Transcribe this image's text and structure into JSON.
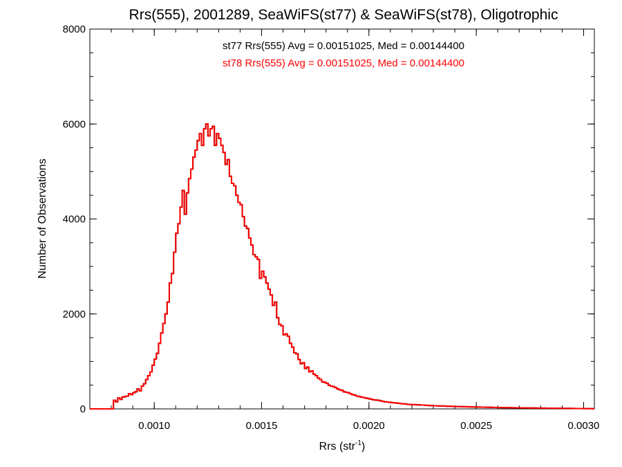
{
  "chart_data": {
    "type": "histogram",
    "title": "Rrs(555), 2001289, SeaWiFS(st77) & SeaWiFS(st78), Oligotrophic",
    "xlabel_base": "Rrs (str",
    "xlabel_sup": "-1",
    "xlabel_close": ")",
    "ylabel": "Number of Observations",
    "xlim": [
      0.0007,
      0.00305
    ],
    "ylim": [
      0,
      8000
    ],
    "xticks": [
      {
        "value": 0.001,
        "label": "0.0010"
      },
      {
        "value": 0.0015,
        "label": "0.0015"
      },
      {
        "value": 0.002,
        "label": "0.0020"
      },
      {
        "value": 0.0025,
        "label": "0.0025"
      },
      {
        "value": 0.003,
        "label": "0.0030"
      }
    ],
    "yticks": [
      {
        "value": 0,
        "label": "0"
      },
      {
        "value": 2000,
        "label": "2000"
      },
      {
        "value": 4000,
        "label": "4000"
      },
      {
        "value": 6000,
        "label": "6000"
      },
      {
        "value": 8000,
        "label": "8000"
      }
    ],
    "annotations": [
      {
        "text": "st77 Rrs(555) Avg = 0.00151025, Med = 0.00144400",
        "color": "#000000"
      },
      {
        "text": "st78 Rrs(555) Avg = 0.00151025, Med = 0.00144400",
        "color": "#ff0000"
      }
    ],
    "bin_width": 1e-05,
    "series": [
      {
        "name": "st77",
        "color": "#000000",
        "bins": [
          [
            0.0007,
            0
          ],
          [
            0.0008,
            0
          ],
          [
            0.00081,
            180
          ],
          [
            0.00082,
            150
          ],
          [
            0.00083,
            230
          ],
          [
            0.00084,
            200
          ],
          [
            0.00085,
            250
          ],
          [
            0.00086,
            260
          ],
          [
            0.00087,
            270
          ],
          [
            0.00088,
            320
          ],
          [
            0.00089,
            300
          ],
          [
            0.0009,
            340
          ],
          [
            0.00091,
            360
          ],
          [
            0.00092,
            420
          ],
          [
            0.00093,
            380
          ],
          [
            0.00094,
            480
          ],
          [
            0.00095,
            530
          ],
          [
            0.00096,
            620
          ],
          [
            0.00097,
            700
          ],
          [
            0.00098,
            780
          ],
          [
            0.00099,
            920
          ],
          [
            0.001,
            1050
          ],
          [
            0.00101,
            1170
          ],
          [
            0.00102,
            1380
          ],
          [
            0.00103,
            1600
          ],
          [
            0.00104,
            1800
          ],
          [
            0.00105,
            2000
          ],
          [
            0.00106,
            2250
          ],
          [
            0.00107,
            2650
          ],
          [
            0.00108,
            2850
          ],
          [
            0.00109,
            3300
          ],
          [
            0.0011,
            3700
          ],
          [
            0.00111,
            3900
          ],
          [
            0.00112,
            4250
          ],
          [
            0.00113,
            4600
          ],
          [
            0.00114,
            4100
          ],
          [
            0.00115,
            4550
          ],
          [
            0.00116,
            4850
          ],
          [
            0.00117,
            5050
          ],
          [
            0.00118,
            5300
          ],
          [
            0.00119,
            5450
          ],
          [
            0.0012,
            5650
          ],
          [
            0.00121,
            5800
          ],
          [
            0.00122,
            5550
          ],
          [
            0.00123,
            5900
          ],
          [
            0.00124,
            6000
          ],
          [
            0.00125,
            5750
          ],
          [
            0.00126,
            5900
          ],
          [
            0.00127,
            5950
          ],
          [
            0.00128,
            5550
          ],
          [
            0.00129,
            5800
          ],
          [
            0.0013,
            5700
          ],
          [
            0.00131,
            5550
          ],
          [
            0.00132,
            5400
          ],
          [
            0.00133,
            5150
          ],
          [
            0.00134,
            5250
          ],
          [
            0.00135,
            4900
          ],
          [
            0.00136,
            4750
          ],
          [
            0.00137,
            4700
          ],
          [
            0.00138,
            4500
          ],
          [
            0.00139,
            4350
          ],
          [
            0.0014,
            4300
          ],
          [
            0.00141,
            4050
          ],
          [
            0.00142,
            3850
          ],
          [
            0.00143,
            3800
          ],
          [
            0.00144,
            3600
          ],
          [
            0.00145,
            3450
          ],
          [
            0.00146,
            3250
          ],
          [
            0.00147,
            3200
          ],
          [
            0.00148,
            3150
          ],
          [
            0.00149,
            2750
          ],
          [
            0.0015,
            2900
          ],
          [
            0.00151,
            2780
          ],
          [
            0.00152,
            2650
          ],
          [
            0.00153,
            2520
          ],
          [
            0.00154,
            2400
          ],
          [
            0.00155,
            2180
          ],
          [
            0.00156,
            2250
          ],
          [
            0.00157,
            1920
          ],
          [
            0.00158,
            1780
          ],
          [
            0.00159,
            1750
          ],
          [
            0.0016,
            1560
          ],
          [
            0.00161,
            1580
          ],
          [
            0.00162,
            1530
          ],
          [
            0.00163,
            1380
          ],
          [
            0.00164,
            1300
          ],
          [
            0.00165,
            1180
          ],
          [
            0.00166,
            1160
          ],
          [
            0.00167,
            1040
          ],
          [
            0.00168,
            950
          ],
          [
            0.00169,
            970
          ],
          [
            0.0017,
            850
          ],
          [
            0.00171,
            880
          ],
          [
            0.00172,
            780
          ],
          [
            0.00173,
            800
          ],
          [
            0.00174,
            730
          ],
          [
            0.00175,
            700
          ],
          [
            0.00176,
            650
          ],
          [
            0.00177,
            620
          ],
          [
            0.00178,
            570
          ],
          [
            0.00179,
            560
          ],
          [
            0.0018,
            540
          ],
          [
            0.00181,
            500
          ],
          [
            0.00182,
            480
          ],
          [
            0.00183,
            470
          ],
          [
            0.00184,
            450
          ],
          [
            0.00185,
            420
          ],
          [
            0.00186,
            400
          ],
          [
            0.00187,
            390
          ],
          [
            0.00188,
            360
          ],
          [
            0.00189,
            350
          ],
          [
            0.0019,
            340
          ],
          [
            0.00191,
            320
          ],
          [
            0.00192,
            300
          ],
          [
            0.00193,
            290
          ],
          [
            0.00194,
            270
          ],
          [
            0.00195,
            260
          ],
          [
            0.00196,
            250
          ],
          [
            0.00197,
            240
          ],
          [
            0.00198,
            230
          ],
          [
            0.00199,
            220
          ],
          [
            0.002,
            210
          ],
          [
            0.00201,
            200
          ],
          [
            0.00202,
            190
          ],
          [
            0.00203,
            185
          ],
          [
            0.00204,
            180
          ],
          [
            0.00205,
            170
          ],
          [
            0.00206,
            160
          ],
          [
            0.00207,
            150
          ],
          [
            0.00208,
            145
          ],
          [
            0.00209,
            140
          ],
          [
            0.0021,
            135
          ],
          [
            0.00211,
            130
          ],
          [
            0.00212,
            125
          ],
          [
            0.00213,
            120
          ],
          [
            0.00214,
            115
          ],
          [
            0.00215,
            110
          ],
          [
            0.00216,
            105
          ],
          [
            0.00217,
            100
          ],
          [
            0.00218,
            95
          ],
          [
            0.00219,
            92
          ],
          [
            0.0022,
            90
          ],
          [
            0.00222,
            85
          ],
          [
            0.00224,
            80
          ],
          [
            0.00226,
            75
          ],
          [
            0.00228,
            70
          ],
          [
            0.0023,
            65
          ],
          [
            0.00232,
            62
          ],
          [
            0.00234,
            60
          ],
          [
            0.00236,
            55
          ],
          [
            0.00238,
            52
          ],
          [
            0.0024,
            50
          ],
          [
            0.00242,
            48
          ],
          [
            0.00244,
            45
          ],
          [
            0.00246,
            42
          ],
          [
            0.00248,
            40
          ],
          [
            0.0025,
            38
          ],
          [
            0.00252,
            36
          ],
          [
            0.00254,
            34
          ],
          [
            0.00256,
            32
          ],
          [
            0.00258,
            30
          ],
          [
            0.0026,
            28
          ],
          [
            0.00262,
            26
          ],
          [
            0.00264,
            25
          ],
          [
            0.00266,
            24
          ],
          [
            0.00268,
            22
          ],
          [
            0.0027,
            21
          ],
          [
            0.00272,
            20
          ],
          [
            0.00274,
            19
          ],
          [
            0.00276,
            18
          ],
          [
            0.00278,
            17
          ],
          [
            0.0028,
            16
          ],
          [
            0.00282,
            15
          ],
          [
            0.00284,
            14
          ],
          [
            0.00286,
            13
          ],
          [
            0.00288,
            12
          ],
          [
            0.0029,
            11
          ],
          [
            0.00292,
            10
          ],
          [
            0.00294,
            9
          ],
          [
            0.00296,
            8
          ],
          [
            0.00298,
            7
          ],
          [
            0.003,
            6
          ],
          [
            0.00302,
            5
          ],
          [
            0.00304,
            4
          ]
        ]
      },
      {
        "name": "st78",
        "color": "#ff0000",
        "same_as": "st77"
      }
    ]
  }
}
